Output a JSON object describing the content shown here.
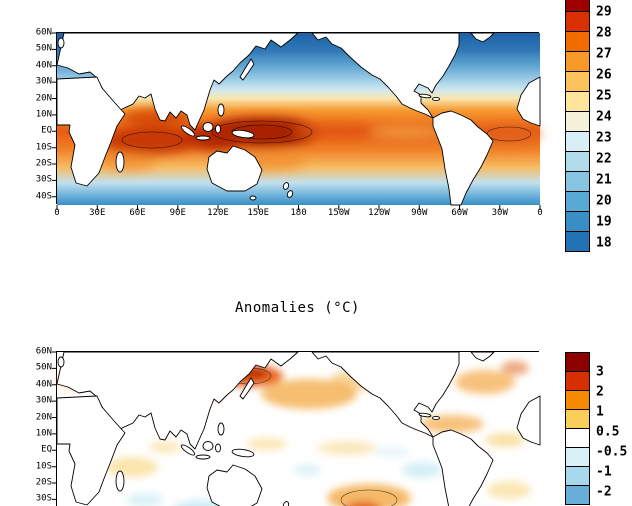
{
  "sst_panel": {
    "lat_labels": [
      "60N",
      "50N",
      "40N",
      "30N",
      "20N",
      "10N",
      "EQ",
      "10S",
      "20S",
      "30S",
      "40S"
    ],
    "lon_labels": [
      "0",
      "30E",
      "60E",
      "90E",
      "120E",
      "150E",
      "180",
      "150W",
      "120W",
      "90W",
      "60W",
      "30W",
      "0"
    ],
    "colorbar": {
      "labels": [
        "29",
        "28",
        "27",
        "26",
        "25",
        "24",
        "23",
        "22",
        "21",
        "20",
        "19",
        "18"
      ],
      "colors": [
        "#9e0000",
        "#d83000",
        "#f06b00",
        "#f89a2a",
        "#fcc25c",
        "#fee49d",
        "#f6f1da",
        "#d9eef5",
        "#b0dcec",
        "#86c5e2",
        "#58a9d4",
        "#3a8ec6",
        "#2372b4"
      ]
    }
  },
  "anomaly_panel": {
    "title": "Anomalies (°C)",
    "lat_labels": [
      "60N",
      "50N",
      "40N",
      "30N",
      "20N",
      "10N",
      "EQ",
      "10S",
      "20S",
      "30S"
    ],
    "colorbar": {
      "labels": [
        "3",
        "2",
        "1",
        "0.5",
        "-0.5",
        "-1",
        "-2"
      ],
      "colors": [
        "#8c0000",
        "#d63000",
        "#f58a00",
        "#f9ce5a",
        "#ffffff",
        "#d8f0f6",
        "#a8d8ee",
        "#68aed8"
      ]
    }
  },
  "chart_data": [
    {
      "type": "heatmap",
      "title": "",
      "x_tick_labels": [
        "0",
        "30E",
        "60E",
        "90E",
        "120E",
        "150E",
        "180",
        "150W",
        "120W",
        "90W",
        "60W",
        "30W",
        "0"
      ],
      "y_tick_labels": [
        "60N",
        "50N",
        "40N",
        "30N",
        "20N",
        "10N",
        "EQ",
        "10S",
        "20S",
        "30S",
        "40S"
      ],
      "colorbar_tick_labels": [
        29,
        28,
        27,
        26,
        25,
        24,
        23,
        22,
        21,
        20,
        19,
        18
      ],
      "legend_position": "right",
      "pattern": "blue at high latitudes, dark red warm pool over tropical Indian Ocean and western equatorial Pacific, lighter warm band along eastern equatorial Pacific and tropical Atlantic"
    },
    {
      "type": "heatmap",
      "title": "Anomalies (°C)",
      "y_tick_labels": [
        "60N",
        "50N",
        "40N",
        "30N",
        "20N",
        "10N",
        "EQ",
        "10S",
        "20S",
        "30S"
      ],
      "colorbar_tick_labels": [
        3,
        2,
        1,
        0.5,
        -0.5,
        -1,
        -2
      ],
      "legend_position": "right",
      "pattern": "mostly near-zero (white) with warm orange/red anomalies over northwest and central North Pacific, North Atlantic, tropical Atlantic and central South Pacific; scattered weak cool patches in Southern Ocean and southeast Pacific"
    }
  ]
}
